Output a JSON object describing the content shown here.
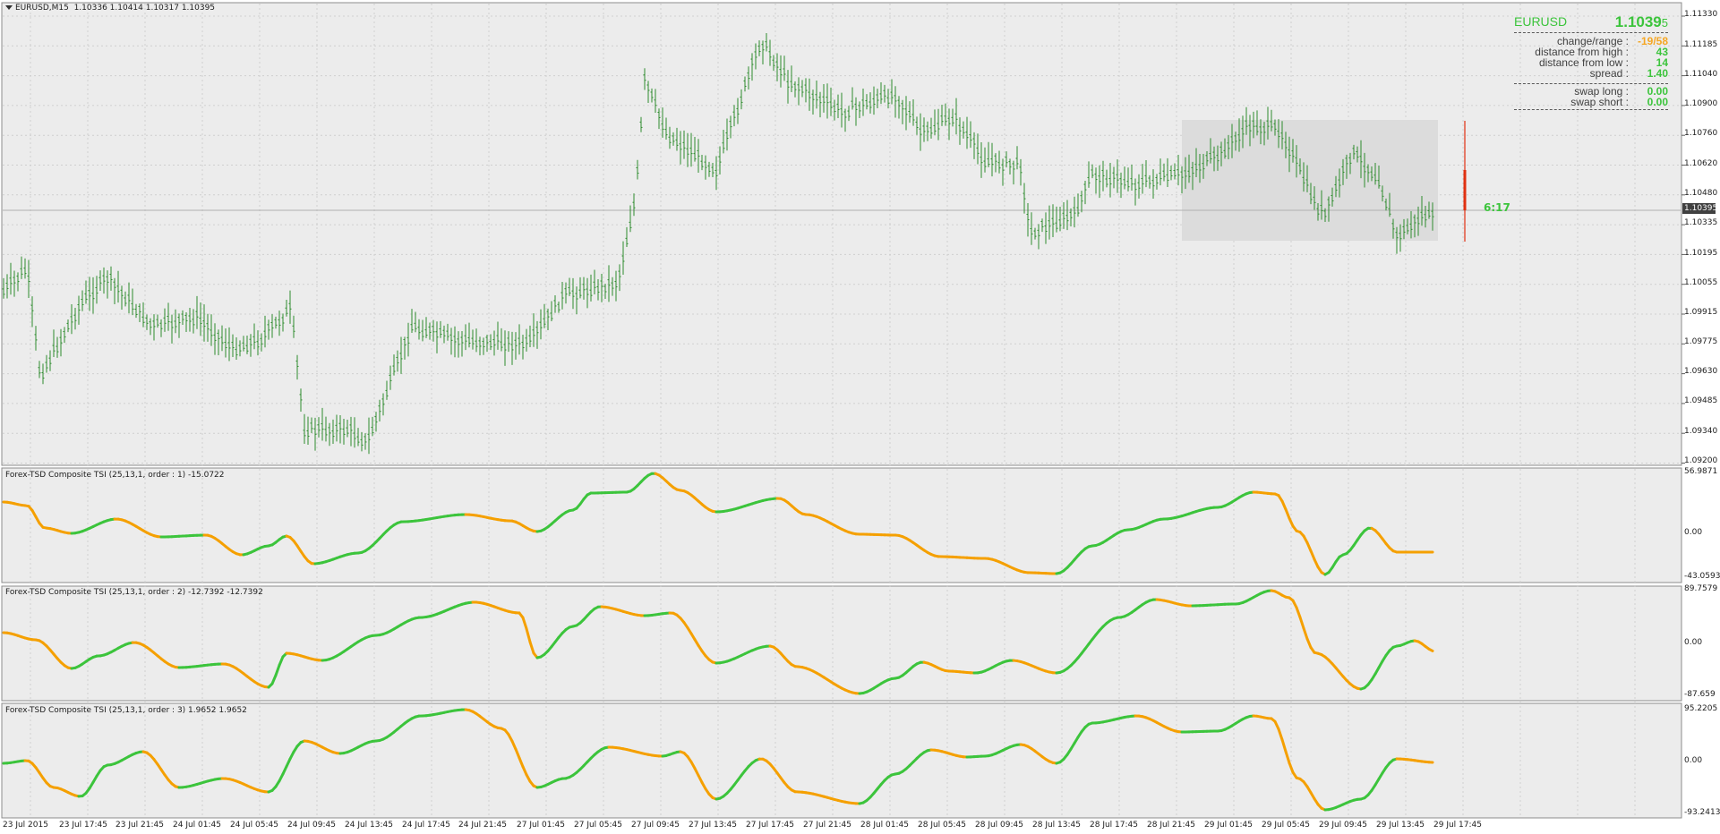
{
  "chart_header": {
    "symbol_timeframe": "EURUSD,M15",
    "ohlc": "1.10336 1.10414 1.10317 1.10395"
  },
  "price_axis": {
    "labels": [
      "1.11330",
      "1.11185",
      "1.11040",
      "1.10900",
      "1.10760",
      "1.10620",
      "1.10480",
      "1.10335",
      "1.10195",
      "1.10055",
      "1.09915",
      "1.09775",
      "1.09630",
      "1.09485",
      "1.09340",
      "1.09200"
    ],
    "current_price": "1.10395"
  },
  "time_axis": {
    "labels": [
      "23 Jul 2015",
      "23 Jul 17:45",
      "23 Jul 21:45",
      "24 Jul 01:45",
      "24 Jul 05:45",
      "24 Jul 09:45",
      "24 Jul 13:45",
      "24 Jul 17:45",
      "24 Jul 21:45",
      "27 Jul 01:45",
      "27 Jul 05:45",
      "27 Jul 09:45",
      "27 Jul 13:45",
      "27 Jul 17:45",
      "27 Jul 21:45",
      "28 Jul 01:45",
      "28 Jul 05:45",
      "28 Jul 09:45",
      "28 Jul 13:45",
      "28 Jul 17:45",
      "28 Jul 21:45",
      "29 Jul 01:45",
      "29 Jul 05:45",
      "29 Jul 09:45",
      "29 Jul 13:45",
      "29 Jul 17:45"
    ]
  },
  "bar_timer": "6:17",
  "info_panel": {
    "symbol": "EURUSD",
    "price_main": "1.1039",
    "price_last_digit": "5",
    "rows": [
      {
        "label": "change/range :",
        "value": "-19/58",
        "color": "#f5a623"
      },
      {
        "label": "distance from high :",
        "value": "43",
        "color": "#3cc43c"
      },
      {
        "label": "distance from low :",
        "value": "14",
        "color": "#3cc43c"
      },
      {
        "label": "spread :",
        "value": "1.40",
        "color": "#3cc43c"
      },
      {
        "label": "swap long :",
        "value": "0.00",
        "color": "#3cc43c"
      },
      {
        "label": "swap short :",
        "value": "0.00",
        "color": "#3cc43c"
      }
    ]
  },
  "indicators": [
    {
      "title": "Forex-TSD Composite TSI (25,13,1, order : 1) -15.0722",
      "labels": [
        "56.9871",
        "0.00",
        "-43.0593"
      ]
    },
    {
      "title": "Forex-TSD Composite TSI (25,13,1, order : 2) -12.7392 -12.7392",
      "labels": [
        "89.7579",
        "0.00",
        "-87.659"
      ]
    },
    {
      "title": "Forex-TSD Composite TSI (25,13,1, order : 3) 1.9652 1.9652",
      "labels": [
        "95.2205",
        "0.00",
        "-93.2413"
      ]
    }
  ],
  "colors": {
    "background": "#ececec",
    "bars": "#2e8b2e",
    "rising": "#3cc43c",
    "falling": "#f5a000",
    "live_bar": "#e03010",
    "highlight_box": "#dcdcdc"
  }
}
